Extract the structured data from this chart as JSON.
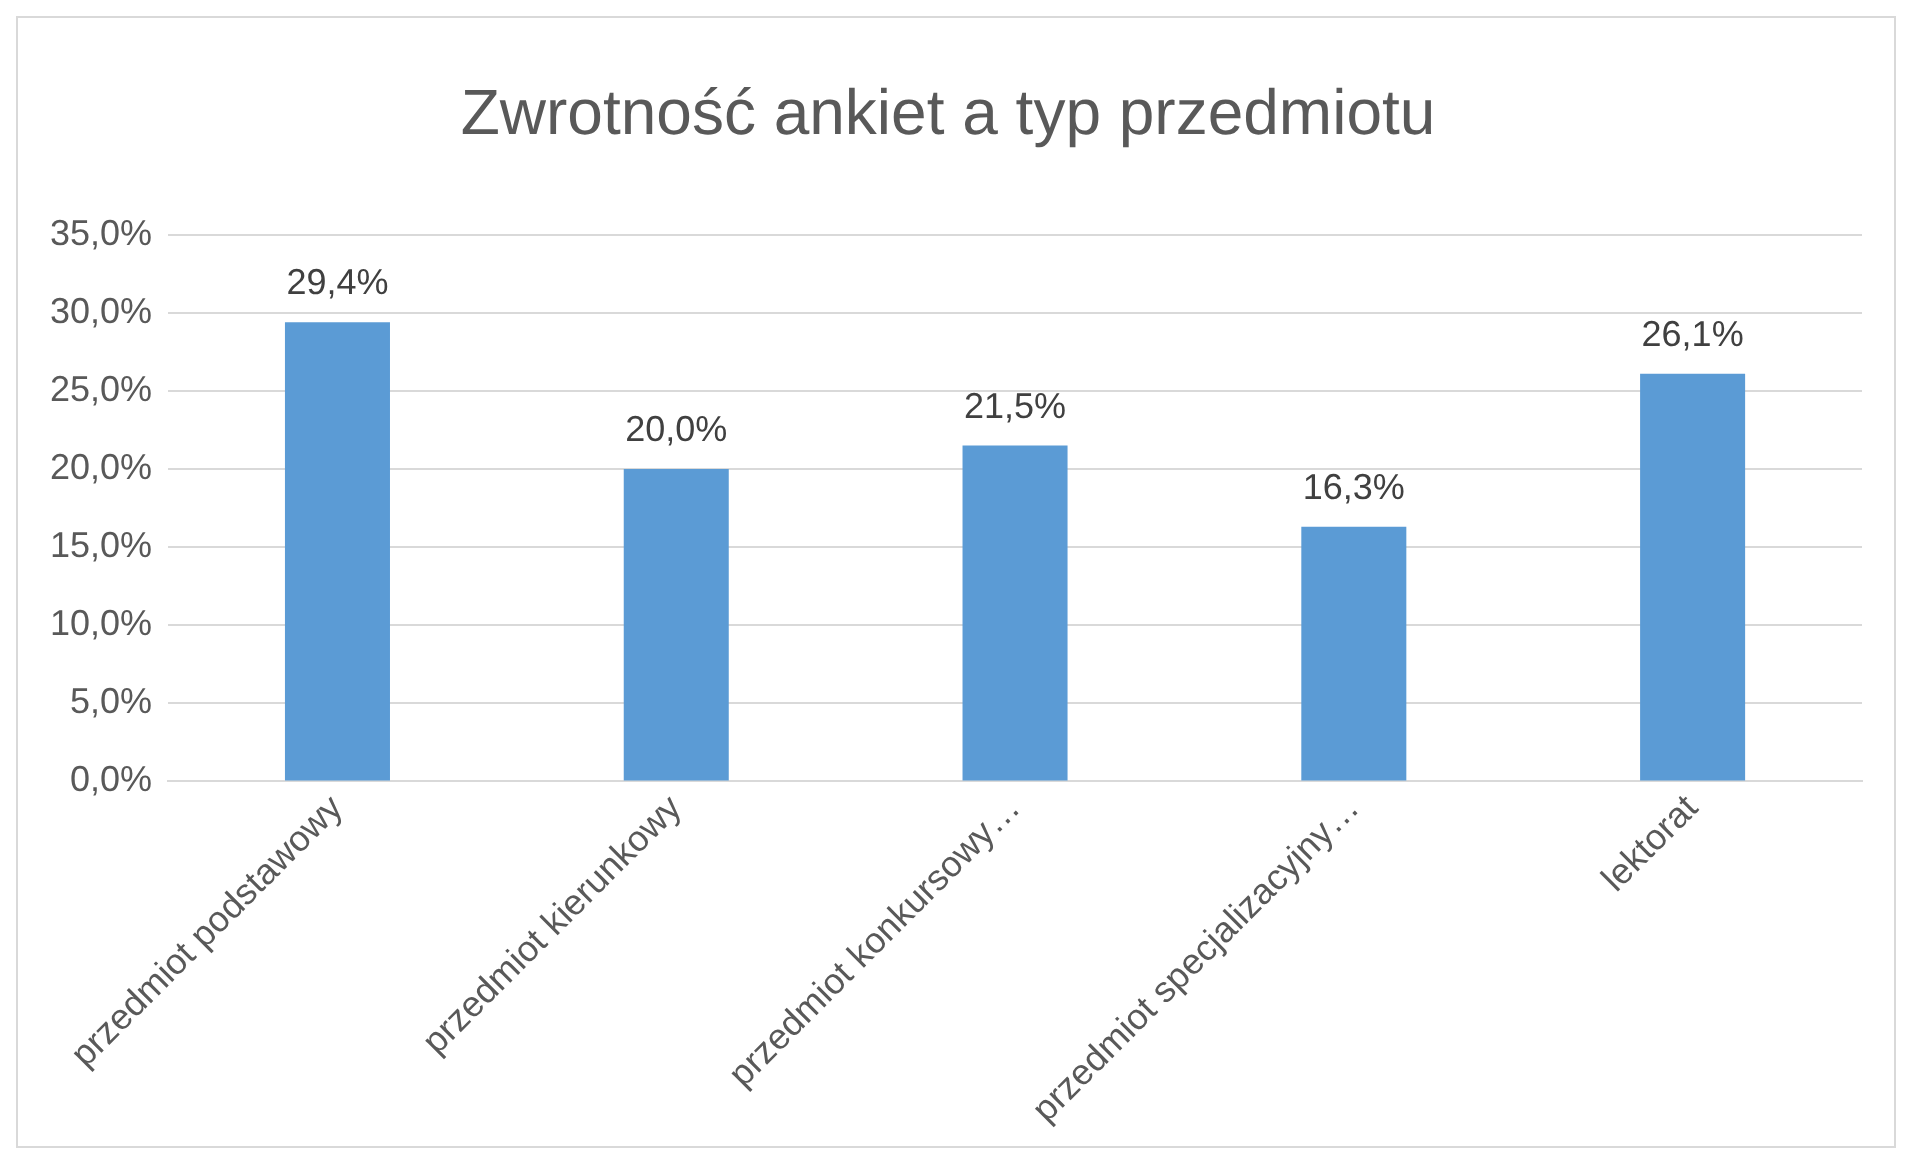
{
  "chart_data": {
    "type": "bar",
    "title": "Zwrotność ankiet a typ przedmiotu",
    "categories": [
      "przedmiot podstawowy",
      "przedmiot kierunkowy",
      "przedmiot konkursowy…",
      "przedmiot specjalizacyjny…",
      "lektorat"
    ],
    "values": [
      29.4,
      20.0,
      21.5,
      16.3,
      26.1
    ],
    "value_labels": [
      "29,4%",
      "20,0%",
      "21,5%",
      "16,3%",
      "26,1%"
    ],
    "color": "#5b9bd5",
    "ylim": [
      0,
      35
    ],
    "yticks": [
      {
        "value": 0,
        "label": "0,0%"
      },
      {
        "value": 5,
        "label": "5,0%"
      },
      {
        "value": 10,
        "label": "10,0%"
      },
      {
        "value": 15,
        "label": "15,0%"
      },
      {
        "value": 20,
        "label": "20,0%"
      },
      {
        "value": 25,
        "label": "25,0%"
      },
      {
        "value": 30,
        "label": "30,0%"
      },
      {
        "value": 35,
        "label": "35,0%"
      }
    ],
    "grid": "y",
    "legend": false
  }
}
